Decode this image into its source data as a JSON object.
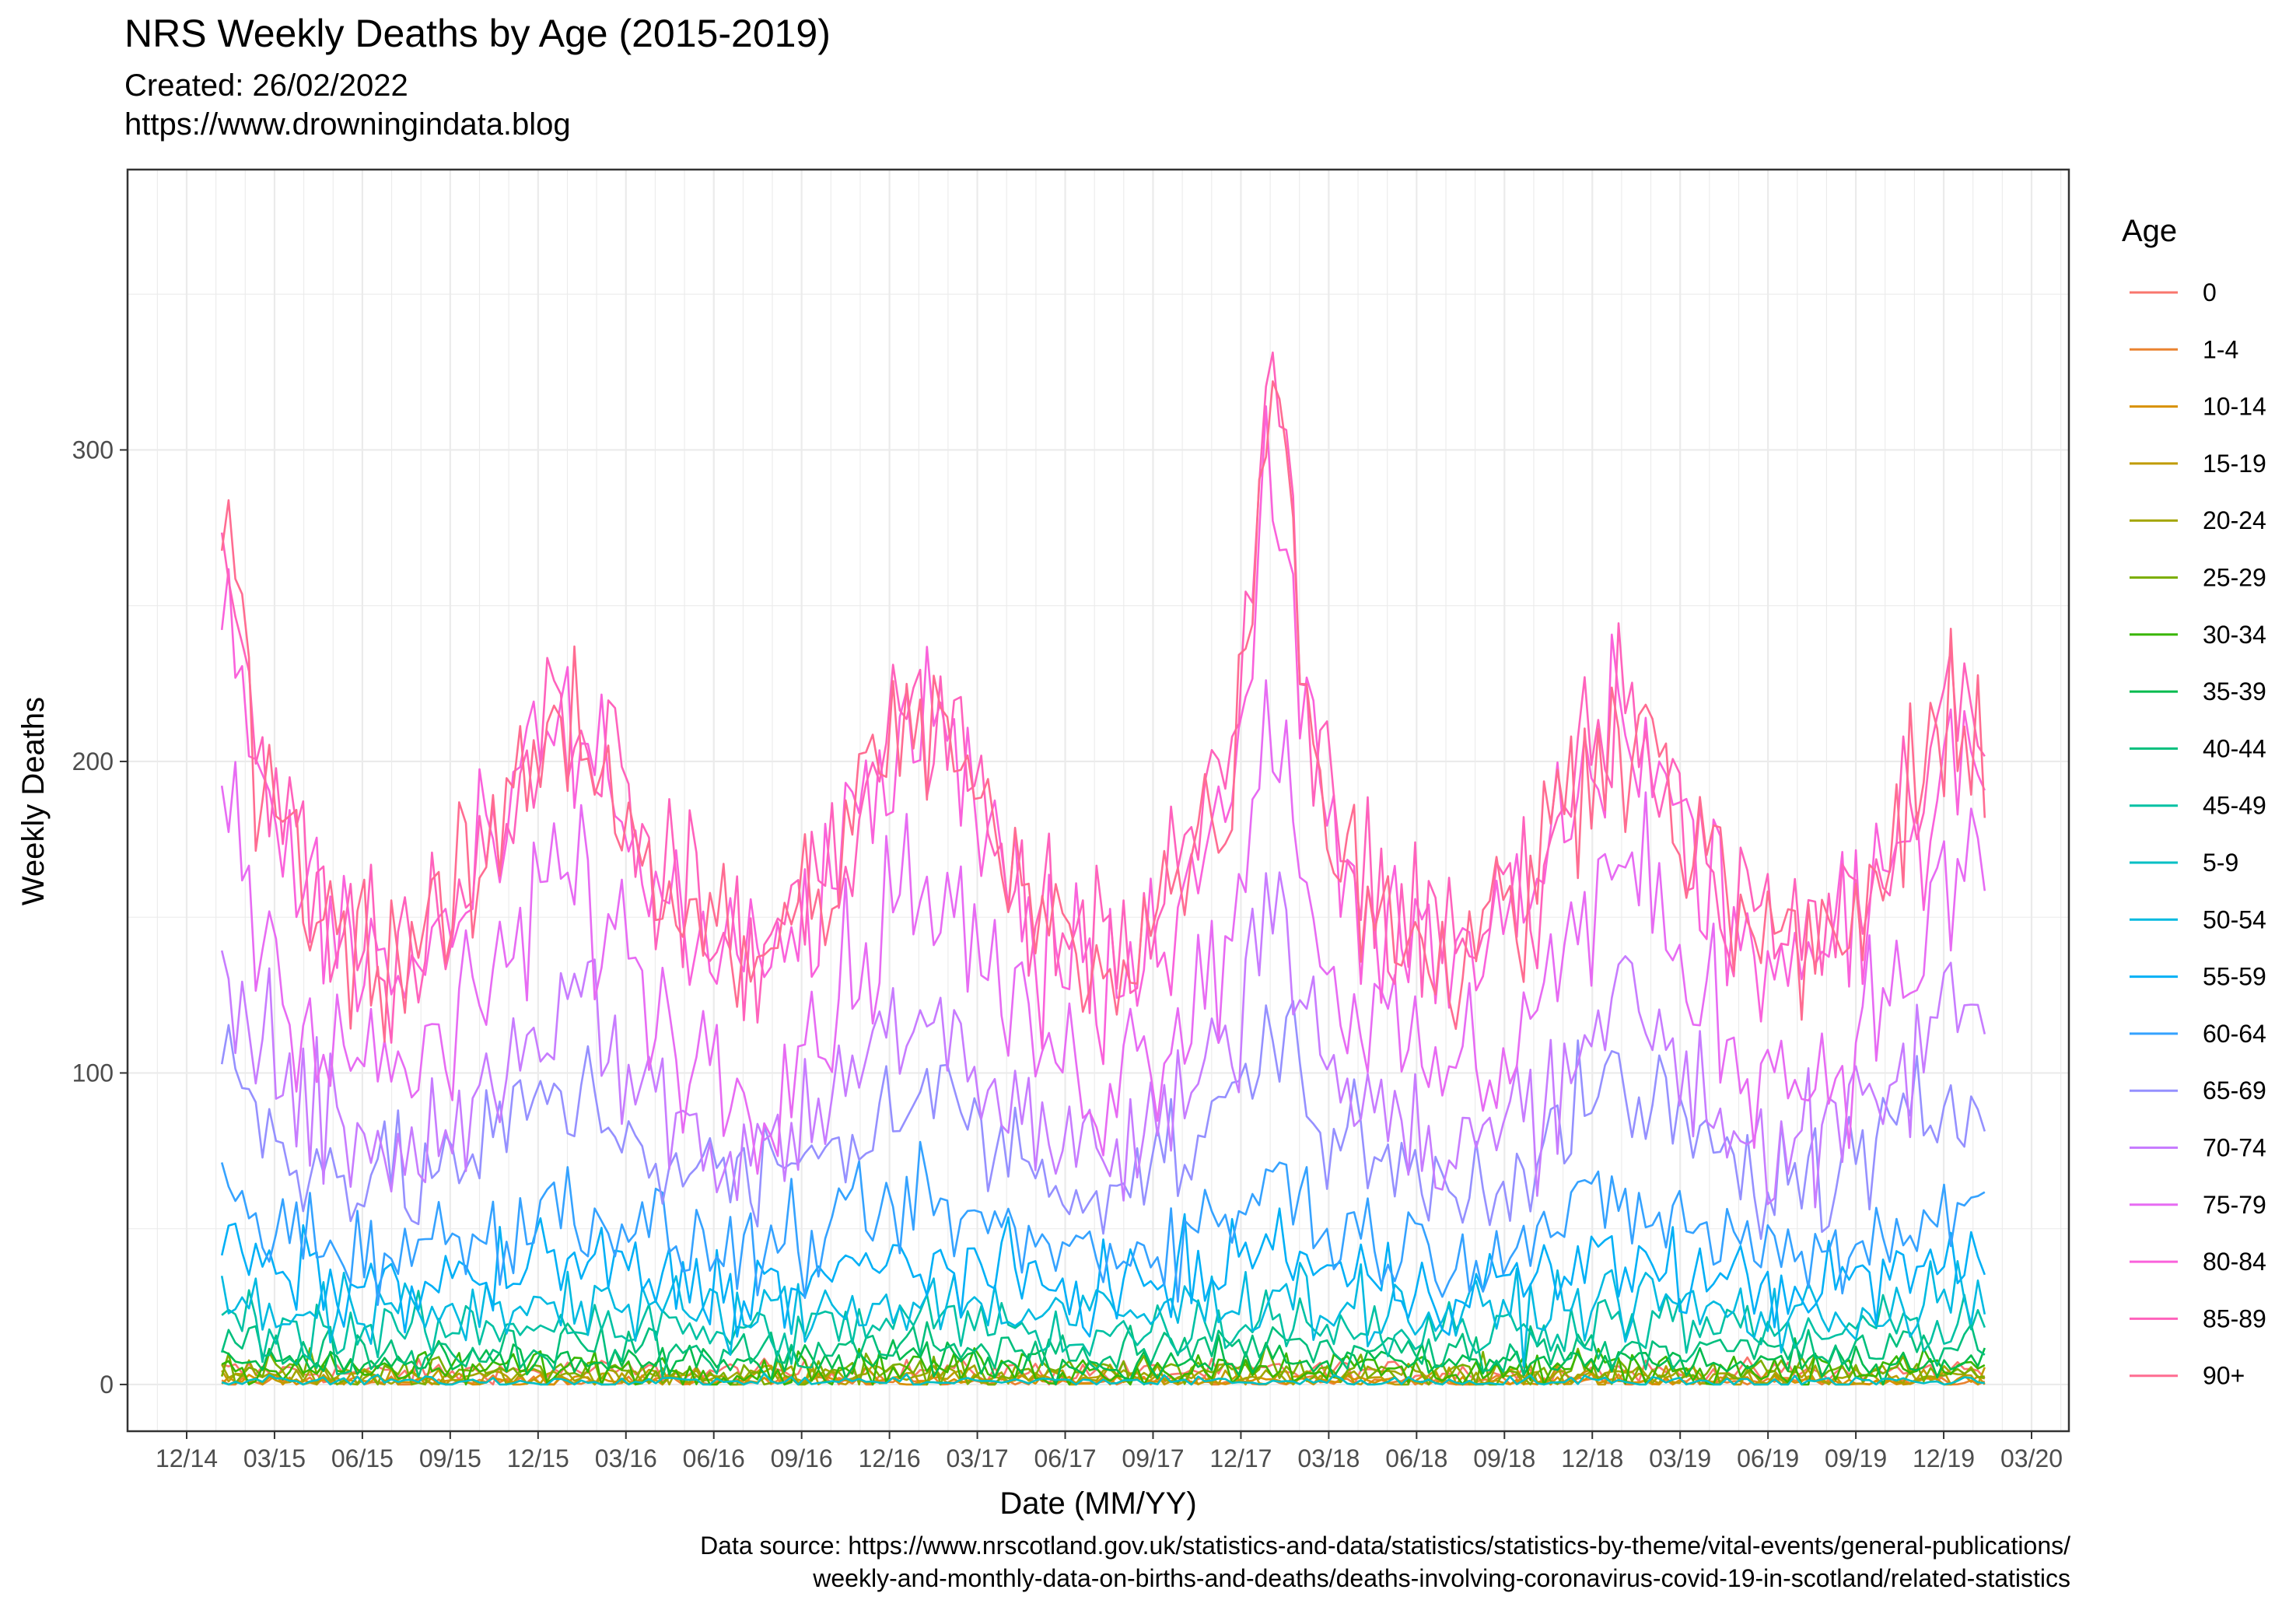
{
  "chart_data": {
    "type": "line",
    "title": "NRS Weekly Deaths by Age (2015-2019)",
    "subtitle_lines": [
      "Created:  26/02/2022",
      "https://www.drowningindata.blog"
    ],
    "xlabel": "Date (MM/YY)",
    "ylabel": "Weekly Deaths",
    "caption_lines": [
      "Data source: https://www.nrscotland.gov.uk/statistics-and-data/statistics/statistics-by-theme/vital-events/general-publications/",
      "weekly-and-monthly-data-on-births-and-deaths/deaths-involving-coronavirus-covid-19-in-scotland/related-statistics"
    ],
    "x_tick_labels": [
      "12/14",
      "03/15",
      "06/15",
      "09/15",
      "12/15",
      "03/16",
      "06/16",
      "09/16",
      "12/16",
      "03/17",
      "06/17",
      "09/17",
      "12/17",
      "03/18",
      "06/18",
      "09/18",
      "12/18",
      "03/19",
      "06/19",
      "09/19",
      "12/19",
      "03/20"
    ],
    "y_ticks": [
      0,
      100,
      200,
      300
    ],
    "ylim": [
      -15,
      390
    ],
    "grid": true,
    "legend": {
      "title": "Age",
      "position": "right"
    },
    "series_colors": {
      "0": "#F8766D",
      "1-4": "#EA8331",
      "10-14": "#D89000",
      "15-19": "#C09B00",
      "20-24": "#A3A500",
      "25-29": "#7CAE00",
      "30-34": "#39B600",
      "35-39": "#00BB4E",
      "40-44": "#00BF7D",
      "45-49": "#00C1A3",
      "5-9": "#00BFC4",
      "50-54": "#00BAE0",
      "55-59": "#00B0F6",
      "60-64": "#35A2FF",
      "65-69": "#9590FF",
      "70-74": "#C77CFF",
      "75-79": "#E76BF3",
      "80-84": "#FA62DB",
      "85-89": "#FF62BC",
      "90+": "#FF6C91"
    },
    "x_unit": "week ending (weekly, 2015-01 to 2019-12)",
    "series": [
      {
        "name": "0",
        "baseline": 4,
        "amp": 0.5,
        "peak2018": 0,
        "noise": 2
      },
      {
        "name": "1-4",
        "baseline": 1,
        "amp": 0,
        "peak2018": 0,
        "noise": 1
      },
      {
        "name": "10-14",
        "baseline": 1,
        "amp": 0,
        "peak2018": 0,
        "noise": 1
      },
      {
        "name": "15-19",
        "baseline": 2,
        "amp": 0,
        "peak2018": 0,
        "noise": 2
      },
      {
        "name": "20-24",
        "baseline": 3,
        "amp": 0.5,
        "peak2018": 0,
        "noise": 2
      },
      {
        "name": "25-29",
        "baseline": 4,
        "amp": 0.5,
        "peak2018": 0,
        "noise": 3
      },
      {
        "name": "30-34",
        "baseline": 5,
        "amp": 1,
        "peak2018": 0,
        "noise": 3
      },
      {
        "name": "35-39",
        "baseline": 7,
        "amp": 1,
        "peak2018": 0,
        "noise": 3
      },
      {
        "name": "40-44",
        "baseline": 11,
        "amp": 2,
        "peak2018": 2,
        "noise": 4
      },
      {
        "name": "45-49",
        "baseline": 18,
        "amp": 3,
        "peak2018": 3,
        "noise": 5
      },
      {
        "name": "5-9",
        "baseline": 1,
        "amp": 0,
        "peak2018": 0,
        "noise": 1
      },
      {
        "name": "50-54",
        "baseline": 24,
        "amp": 4,
        "peak2018": 4,
        "noise": 6
      },
      {
        "name": "55-59",
        "baseline": 34,
        "amp": 6,
        "peak2018": 8,
        "noise": 7
      },
      {
        "name": "60-64",
        "baseline": 48,
        "amp": 10,
        "peak2018": 12,
        "noise": 8
      },
      {
        "name": "65-69",
        "baseline": 75,
        "amp": 20,
        "peak2018": 25,
        "noise": 10
      },
      {
        "name": "70-74",
        "baseline": 92,
        "amp": 35,
        "peak2018": 40,
        "noise": 12
      },
      {
        "name": "75-79",
        "baseline": 122,
        "amp": 45,
        "peak2018": 55,
        "noise": 14
      },
      {
        "name": "80-84",
        "baseline": 160,
        "amp": 55,
        "peak2018": 85,
        "noise": 14
      },
      {
        "name": "85-89",
        "baseline": 168,
        "amp": 55,
        "peak2018": 110,
        "noise": 14
      },
      {
        "name": "90+",
        "baseline": 165,
        "amp": 55,
        "peak2018": 120,
        "noise": 14
      }
    ]
  }
}
